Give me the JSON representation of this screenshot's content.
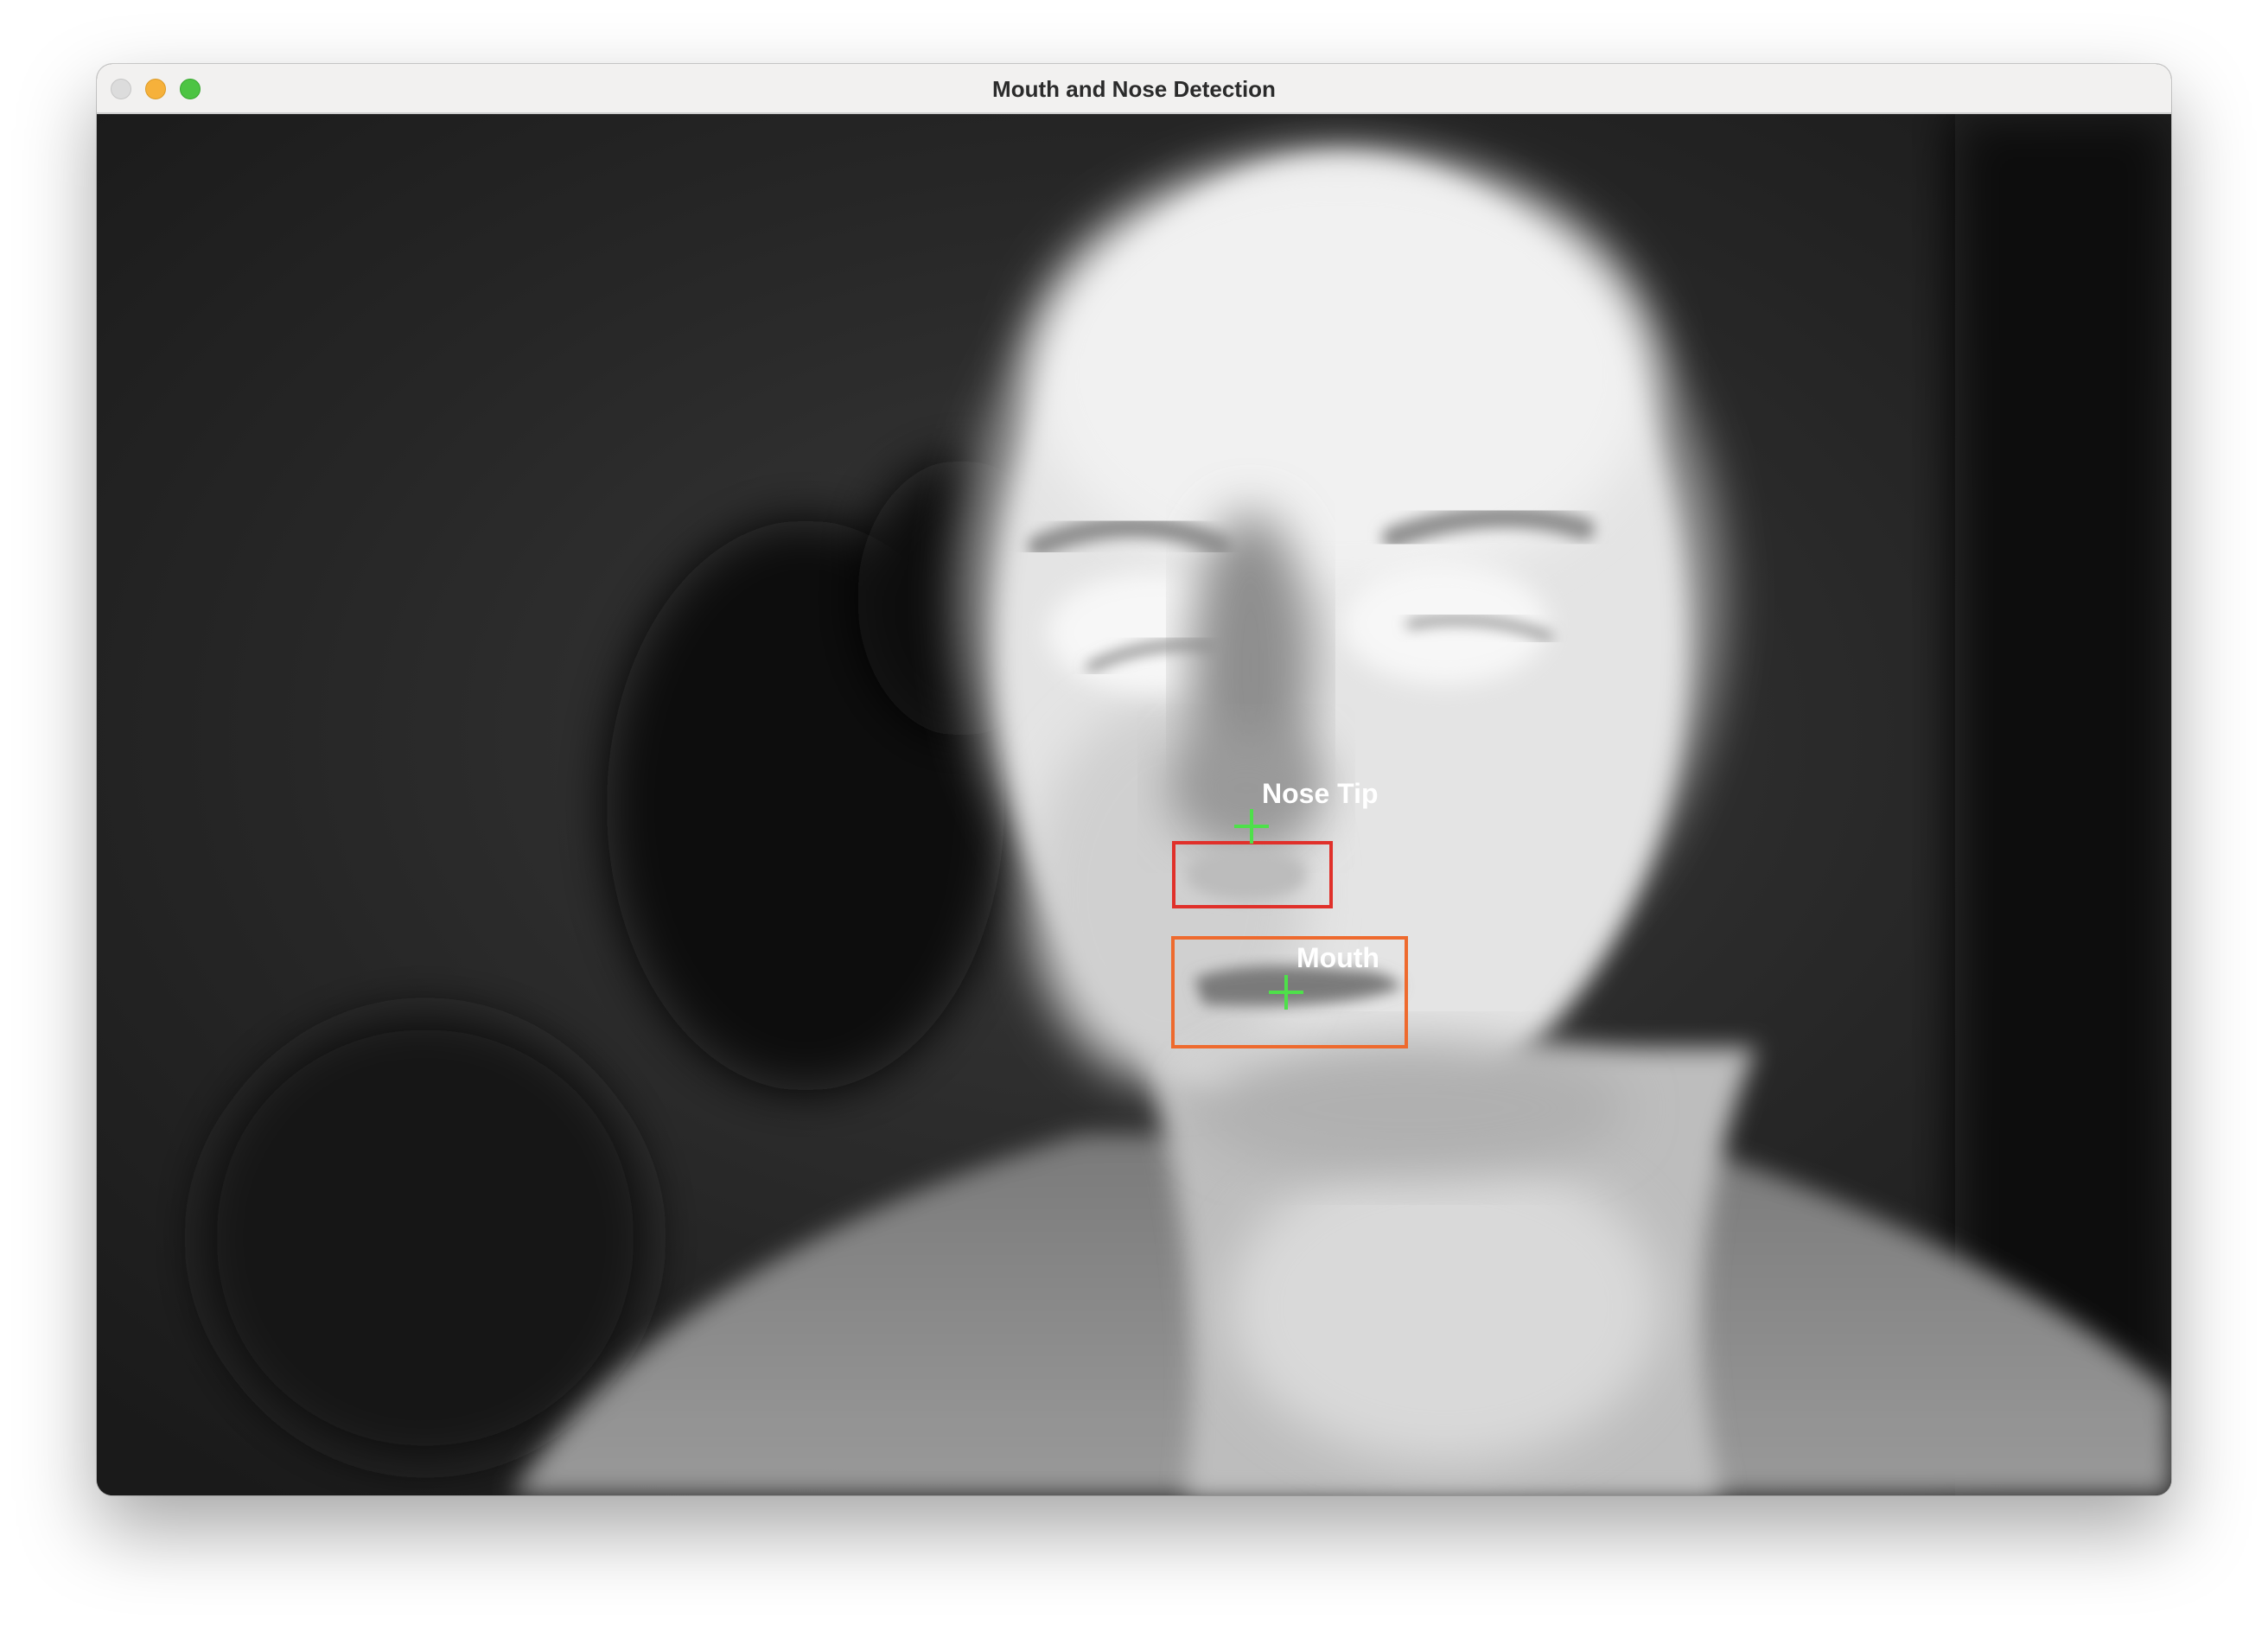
{
  "window": {
    "title": "Mouth and Nose Detection"
  },
  "detections": {
    "nose": {
      "label": "Nose Tip",
      "box_color": "#e0302a",
      "marker_color": "#4ee04a"
    },
    "mouth": {
      "label": "Mouth",
      "box_color": "#ee6a2e",
      "marker_color": "#4ee04a"
    }
  },
  "image": {
    "kind": "thermal grayscale camera frame",
    "colors": {
      "background": "#1e1e1e",
      "face": "#e8e8e8"
    }
  }
}
